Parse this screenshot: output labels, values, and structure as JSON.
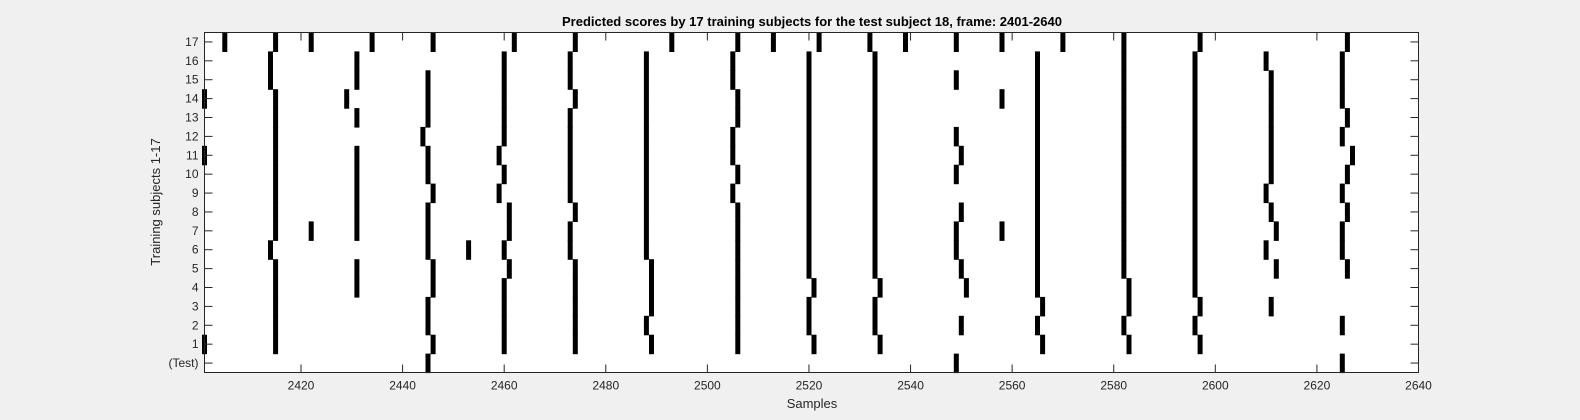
{
  "chart_data": {
    "type": "heatmap",
    "title": "Predicted scores by 17 training subjects for the test subject 18, frame: 2401-2640",
    "xlabel": "Samples",
    "ylabel": "Training subjects 1-17",
    "xlim": [
      2401,
      2640
    ],
    "x_ticks": [
      2420,
      2440,
      2460,
      2480,
      2500,
      2520,
      2540,
      2560,
      2580,
      2600,
      2620,
      2640
    ],
    "y_tick_labels": [
      "(Test)",
      "1",
      "2",
      "3",
      "4",
      "5",
      "6",
      "7",
      "8",
      "9",
      "10",
      "11",
      "12",
      "13",
      "14",
      "15",
      "16",
      "17"
    ],
    "colors": {
      "mark": "#000000",
      "background": "#ffffff",
      "page": "#f0f0f0"
    },
    "rows": [
      {
        "label": "(Test)",
        "x": [
          2445,
          2549,
          2625
        ]
      },
      {
        "label": "1",
        "x": [
          2401,
          2415,
          2446,
          2460,
          2474,
          2489,
          2506,
          2521,
          2534,
          2566,
          2583,
          2597
        ]
      },
      {
        "label": "2",
        "x": [
          2415,
          2445,
          2460,
          2474,
          2488,
          2506,
          2520,
          2533,
          2550,
          2565,
          2582,
          2596,
          2625
        ]
      },
      {
        "label": "3",
        "x": [
          2415,
          2445,
          2460,
          2474,
          2489,
          2506,
          2520,
          2533,
          2566,
          2583,
          2597,
          2611
        ]
      },
      {
        "label": "4",
        "x": [
          2415,
          2431,
          2446,
          2460,
          2474,
          2489,
          2506,
          2521,
          2534,
          2551,
          2565,
          2583,
          2596
        ]
      },
      {
        "label": "5",
        "x": [
          2415,
          2431,
          2446,
          2461,
          2474,
          2489,
          2506,
          2520,
          2533,
          2550,
          2565,
          2582,
          2596,
          2612,
          2626
        ]
      },
      {
        "label": "6",
        "x": [
          2414,
          2445,
          2453,
          2460,
          2473,
          2488,
          2506,
          2520,
          2533,
          2549,
          2565,
          2582,
          2596,
          2610,
          2625
        ]
      },
      {
        "label": "7",
        "x": [
          2415,
          2422,
          2431,
          2445,
          2461,
          2473,
          2488,
          2506,
          2520,
          2533,
          2549,
          2558,
          2565,
          2582,
          2596,
          2612,
          2625
        ]
      },
      {
        "label": "8",
        "x": [
          2415,
          2431,
          2445,
          2461,
          2474,
          2488,
          2506,
          2520,
          2533,
          2550,
          2565,
          2582,
          2596,
          2611,
          2626
        ]
      },
      {
        "label": "9",
        "x": [
          2415,
          2431,
          2446,
          2459,
          2473,
          2488,
          2505,
          2520,
          2533,
          2565,
          2582,
          2596,
          2610,
          2625
        ]
      },
      {
        "label": "10",
        "x": [
          2415,
          2431,
          2445,
          2460,
          2473,
          2488,
          2506,
          2520,
          2533,
          2549,
          2565,
          2582,
          2596,
          2611,
          2626
        ]
      },
      {
        "label": "11",
        "x": [
          2401,
          2415,
          2431,
          2445,
          2459,
          2473,
          2488,
          2505,
          2520,
          2533,
          2550,
          2565,
          2582,
          2596,
          2611,
          2627
        ]
      },
      {
        "label": "12",
        "x": [
          2415,
          2444,
          2460,
          2473,
          2488,
          2505,
          2520,
          2533,
          2549,
          2565,
          2582,
          2596,
          2611,
          2625
        ]
      },
      {
        "label": "13",
        "x": [
          2415,
          2431,
          2445,
          2460,
          2473,
          2488,
          2506,
          2520,
          2533,
          2565,
          2582,
          2596,
          2611,
          2626
        ]
      },
      {
        "label": "14",
        "x": [
          2401,
          2415,
          2429,
          2445,
          2460,
          2474,
          2488,
          2506,
          2520,
          2533,
          2558,
          2565,
          2582,
          2596,
          2611,
          2625
        ]
      },
      {
        "label": "15",
        "x": [
          2414,
          2431,
          2445,
          2460,
          2473,
          2488,
          2505,
          2520,
          2533,
          2549,
          2565,
          2582,
          2596,
          2611,
          2625
        ]
      },
      {
        "label": "16",
        "x": [
          2414,
          2431,
          2460,
          2473,
          2488,
          2505,
          2520,
          2533,
          2565,
          2582,
          2596,
          2610,
          2625
        ]
      },
      {
        "label": "17",
        "x": [
          2405,
          2415,
          2422,
          2434,
          2446,
          2462,
          2474,
          2493,
          2506,
          2513,
          2522,
          2532,
          2539,
          2549,
          2558,
          2570,
          2582,
          2597,
          2626
        ]
      }
    ]
  }
}
